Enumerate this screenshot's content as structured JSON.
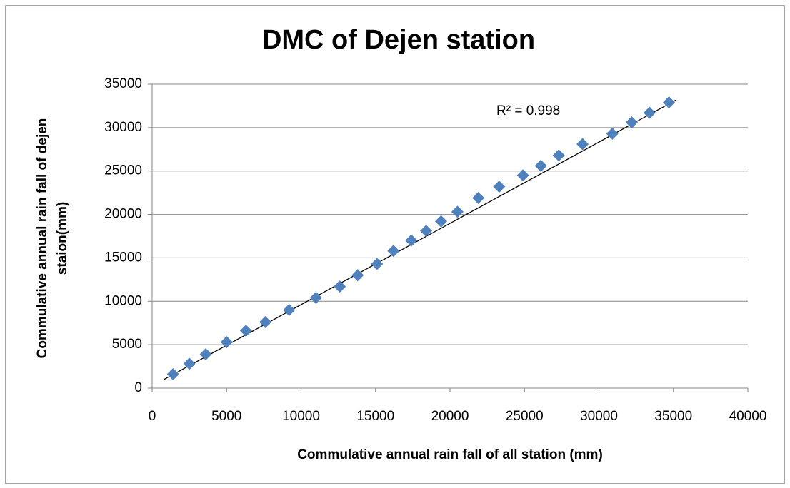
{
  "chart_data": {
    "type": "scatter",
    "title": "DMC of Dejen station",
    "xlabel": "Commulative annual rain fall of all station (mm)",
    "ylabel": [
      "Commulative annual rain fall of dejen",
      "staion(mm)"
    ],
    "annotation": "R² = 0.998",
    "color": "#4f81bd",
    "x": [
      1400,
      2500,
      3600,
      5000,
      6300,
      7600,
      9200,
      11000,
      12600,
      13800,
      15100,
      16200,
      17400,
      18400,
      19400,
      20500,
      21900,
      23300,
      24900,
      26100,
      27300,
      28900,
      30900,
      32200,
      33400,
      34700
    ],
    "values": [
      1600,
      2800,
      3900,
      5300,
      6600,
      7600,
      9000,
      10400,
      11700,
      13000,
      14300,
      15800,
      17000,
      18100,
      19200,
      20300,
      21900,
      23200,
      24500,
      25600,
      26800,
      28100,
      29300,
      30600,
      31700,
      32900
    ],
    "trendline": {
      "x": [
        800,
        35200
      ],
      "y": [
        1000,
        33200
      ]
    },
    "xlim": [
      0,
      40000
    ],
    "xticks": [
      0,
      5000,
      10000,
      15000,
      20000,
      25000,
      30000,
      35000,
      40000
    ],
    "ylim": [
      0,
      35000
    ],
    "yticks": [
      0,
      5000,
      10000,
      15000,
      20000,
      25000,
      30000,
      35000
    ],
    "grid": true
  }
}
